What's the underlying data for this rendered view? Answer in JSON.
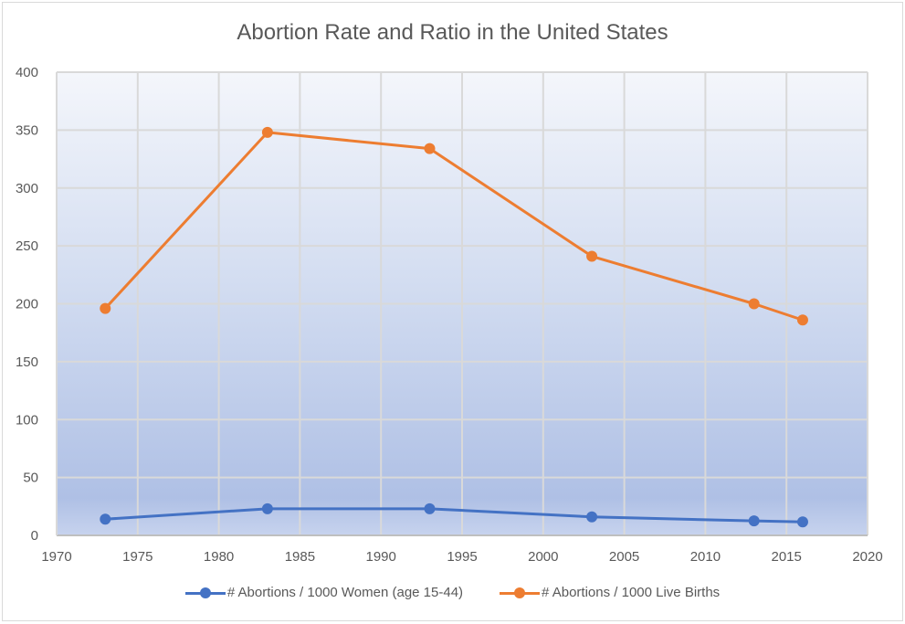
{
  "chart_data": {
    "type": "line",
    "title": "Abortion Rate and Ratio in the United States",
    "xlabel": "",
    "ylabel": "",
    "xlim": [
      1970,
      2020
    ],
    "ylim": [
      0,
      400
    ],
    "x_ticks": [
      1970,
      1975,
      1980,
      1985,
      1990,
      1995,
      2000,
      2005,
      2010,
      2015,
      2020
    ],
    "y_ticks": [
      0,
      50,
      100,
      150,
      200,
      250,
      300,
      350,
      400
    ],
    "grid": true,
    "legend_position": "bottom",
    "x": [
      1973,
      1983,
      1993,
      2003,
      2013,
      2016
    ],
    "series": [
      {
        "name": "# Abortions / 1000 Women (age 15-44)",
        "color": "#4472c4",
        "values": [
          14,
          23,
          23,
          16,
          12.5,
          11.6
        ]
      },
      {
        "name": "# Abortions / 1000 Live Births",
        "color": "#ed7d31",
        "values": [
          196,
          348,
          334,
          241,
          200,
          186
        ]
      }
    ]
  }
}
